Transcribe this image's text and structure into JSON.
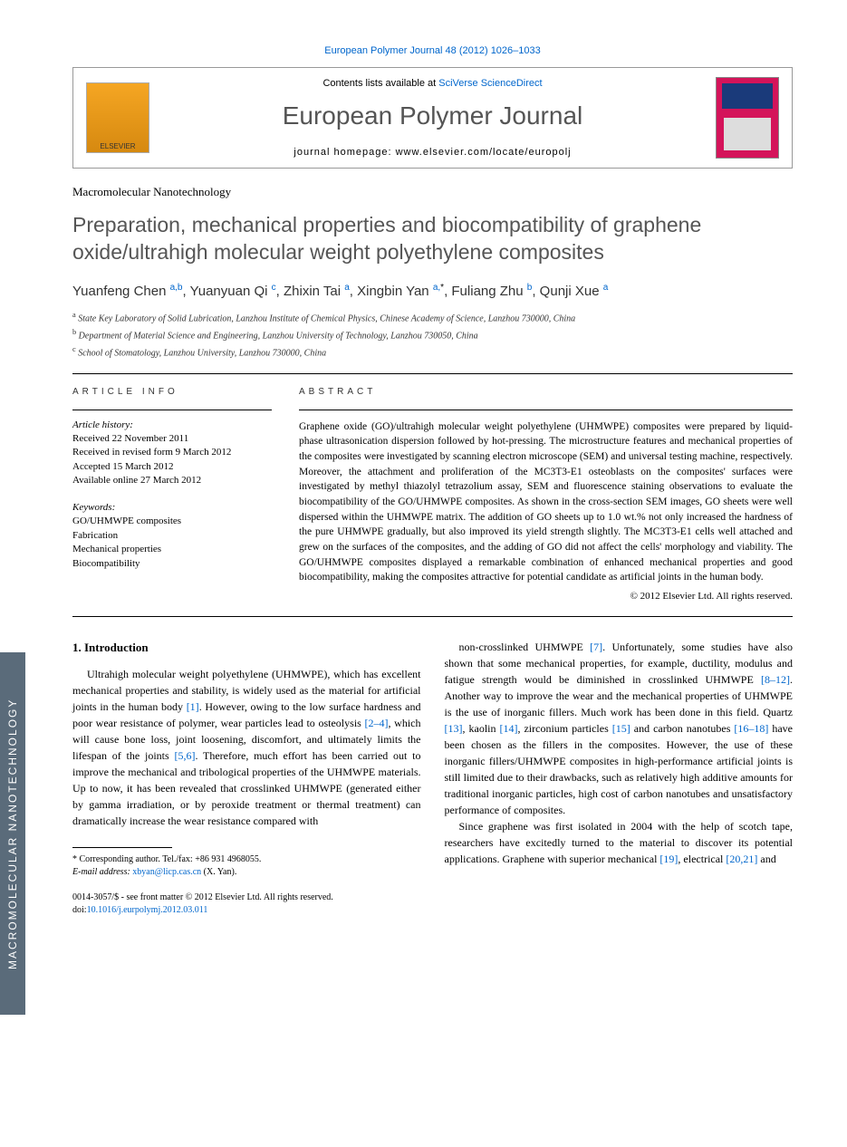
{
  "side_tab": "MACROMOLECULAR NANOTECHNOLOGY",
  "top_link": "European Polymer Journal 48 (2012) 1026–1033",
  "header": {
    "elsevier": "ELSEVIER",
    "contents_pre": "Contents lists available at ",
    "contents_link": "SciVerse ScienceDirect",
    "journal": "European Polymer Journal",
    "homepage_pre": "journal homepage: ",
    "homepage": "www.elsevier.com/locate/europolj"
  },
  "section_label": "Macromolecular Nanotechnology",
  "title": "Preparation, mechanical properties and biocompatibility of graphene oxide/ultrahigh molecular weight polyethylene composites",
  "authors_html": "Yuanfeng Chen <sup>a,b</sup>, Yuanyuan Qi <sup>c</sup>, Zhixin Tai <sup>a</sup>, Xingbin Yan <sup>a,</sup><sup class='star'>*</sup>, Fuliang Zhu <sup>b</sup>, Qunji Xue <sup>a</sup>",
  "affiliations": [
    {
      "sup": "a",
      "text": "State Key Laboratory of Solid Lubrication, Lanzhou Institute of Chemical Physics, Chinese Academy of Science, Lanzhou 730000, China"
    },
    {
      "sup": "b",
      "text": "Department of Material Science and Engineering, Lanzhou University of Technology, Lanzhou 730050, China"
    },
    {
      "sup": "c",
      "text": "School of Stomatology, Lanzhou University, Lanzhou 730000, China"
    }
  ],
  "info": {
    "head": "ARTICLE INFO",
    "history_label": "Article history:",
    "history": [
      "Received 22 November 2011",
      "Received in revised form 9 March 2012",
      "Accepted 15 March 2012",
      "Available online 27 March 2012"
    ],
    "keywords_label": "Keywords:",
    "keywords": [
      "GO/UHMWPE composites",
      "Fabrication",
      "Mechanical properties",
      "Biocompatibility"
    ]
  },
  "abstract": {
    "head": "ABSTRACT",
    "text": "Graphene oxide (GO)/ultrahigh molecular weight polyethylene (UHMWPE) composites were prepared by liquid-phase ultrasonication dispersion followed by hot-pressing. The microstructure features and mechanical properties of the composites were investigated by scanning electron microscope (SEM) and universal testing machine, respectively. Moreover, the attachment and proliferation of the MC3T3-E1 osteoblasts on the composites' surfaces were investigated by methyl thiazolyl tetrazolium assay, SEM and fluorescence staining observations to evaluate the biocompatibility of the GO/UHMWPE composites. As shown in the cross-section SEM images, GO sheets were well dispersed within the UHMWPE matrix. The addition of GO sheets up to 1.0 wt.% not only increased the hardness of the pure UHMWPE gradually, but also improved its yield strength slightly. The MC3T3-E1 cells well attached and grew on the surfaces of the composites, and the adding of GO did not affect the cells' morphology and viability. The GO/UHMWPE composites displayed a remarkable combination of enhanced mechanical properties and good biocompatibility, making the composites attractive for potential candidate as artificial joints in the human body.",
    "copyright": "© 2012 Elsevier Ltd. All rights reserved."
  },
  "intro": {
    "head": "1. Introduction",
    "col1": "Ultrahigh molecular weight polyethylene (UHMWPE), which has excellent mechanical properties and stability, is widely used as the material for artificial joints in the human body <a class='ref'>[1]</a>. However, owing to the low surface hardness and poor wear resistance of polymer, wear particles lead to osteolysis <a class='ref'>[2–4]</a>, which will cause bone loss, joint loosening, discomfort, and ultimately limits the lifespan of the joints <a class='ref'>[5,6]</a>. Therefore, much effort has been carried out to improve the mechanical and tribological properties of the UHMWPE materials. Up to now, it has been revealed that crosslinked UHMWPE (generated either by gamma irradiation, or by peroxide treatment or thermal treatment) can dramatically increase the wear resistance compared with",
    "col2_p1": "non-crosslinked UHMWPE <a class='ref'>[7]</a>. Unfortunately, some studies have also shown that some mechanical properties, for example, ductility, modulus and fatigue strength would be diminished in crosslinked UHMWPE <a class='ref'>[8–12]</a>. Another way to improve the wear and the mechanical properties of UHMWPE is the use of inorganic fillers. Much work has been done in this field. Quartz <a class='ref'>[13]</a>, kaolin <a class='ref'>[14]</a>, zirconium particles <a class='ref'>[15]</a> and carbon nanotubes <a class='ref'>[16–18]</a> have been chosen as the fillers in the composites. However, the use of these inorganic fillers/UHMWPE composites in high-performance artificial joints is still limited due to their drawbacks, such as relatively high additive amounts for traditional inorganic particles, high cost of carbon nanotubes and unsatisfactory performance of composites.",
    "col2_p2": "Since graphene was first isolated in 2004 with the help of scotch tape, researchers have excitedly turned to the material to discover its potential applications. Graphene with superior mechanical <a class='ref'>[19]</a>, electrical <a class='ref'>[20,21]</a> and"
  },
  "footnote": {
    "corr": "* Corresponding author. Tel./fax: +86 931 4968055.",
    "email_label": "E-mail address: ",
    "email": "xbyan@licp.cas.cn",
    "email_suffix": " (X. Yan)."
  },
  "bottom": {
    "line1": "0014-3057/$ - see front matter © 2012 Elsevier Ltd. All rights reserved.",
    "doi_label": "doi:",
    "doi": "10.1016/j.eurpolymj.2012.03.011"
  }
}
